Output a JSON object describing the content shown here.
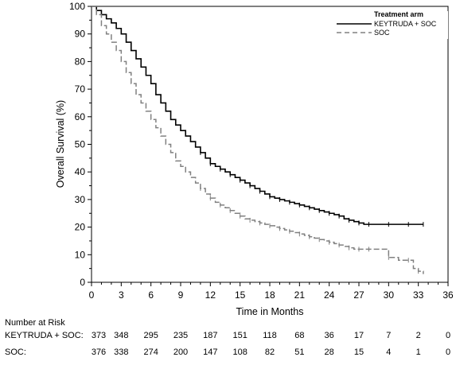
{
  "chart_data": {
    "type": "line",
    "subtype": "kaplan-meier",
    "xlabel": "Time in Months",
    "ylabel": "Overall Survival (%)",
    "xlim": [
      0,
      36
    ],
    "ylim": [
      0,
      100
    ],
    "xticks": [
      0,
      3,
      6,
      9,
      12,
      15,
      18,
      21,
      24,
      27,
      30,
      33,
      36
    ],
    "yticks": [
      0,
      10,
      20,
      30,
      40,
      50,
      60,
      70,
      80,
      90,
      100
    ],
    "grid": false,
    "legend": {
      "title": "Treatment arm",
      "position": "top-right"
    },
    "series": [
      {
        "name": "KEYTRUDA + SOC",
        "color": "#000000",
        "line_style": "solid",
        "x": [
          0,
          0.5,
          1,
          1.5,
          2,
          2.5,
          3,
          3.5,
          4,
          4.5,
          5,
          5.5,
          6,
          6.5,
          7,
          7.5,
          8,
          8.5,
          9,
          9.5,
          10,
          10.5,
          11,
          11.5,
          12,
          12.5,
          13,
          13.5,
          14,
          14.5,
          15,
          15.5,
          16,
          16.5,
          17,
          17.5,
          18,
          18.5,
          19,
          19.5,
          20,
          20.5,
          21,
          21.5,
          22,
          22.5,
          23,
          23.5,
          24,
          24.5,
          25,
          25.5,
          26,
          26.5,
          27,
          27.5,
          28,
          29,
          30,
          31,
          32,
          33,
          33.5
        ],
        "y": [
          100,
          98.5,
          97,
          95.5,
          94,
          92,
          90,
          87,
          84,
          81,
          78,
          75,
          72,
          68,
          65,
          62,
          59,
          57,
          55,
          53,
          51,
          49,
          47,
          45,
          43,
          42,
          41,
          40,
          39,
          38,
          37,
          36,
          35,
          34,
          33,
          32,
          31,
          30.5,
          30,
          29.5,
          29,
          28.5,
          28,
          27.5,
          27,
          26.5,
          26,
          25.5,
          25,
          24.5,
          24,
          23,
          22.5,
          22,
          21.5,
          21,
          21,
          21,
          21,
          21,
          21,
          21,
          21
        ]
      },
      {
        "name": "SOC",
        "color": "#808080",
        "line_style": "dashed",
        "x": [
          0,
          0.5,
          1,
          1.5,
          2,
          2.5,
          3,
          3.5,
          4,
          4.5,
          5,
          5.5,
          6,
          6.5,
          7,
          7.5,
          8,
          8.5,
          9,
          9.5,
          10,
          10.5,
          11,
          11.5,
          12,
          12.5,
          13,
          13.5,
          14,
          14.5,
          15,
          15.5,
          16,
          16.5,
          17,
          17.5,
          18,
          18.5,
          19,
          19.5,
          20,
          20.5,
          21,
          21.5,
          22,
          22.5,
          23,
          23.5,
          24,
          24.5,
          25,
          25.5,
          26,
          26.5,
          27,
          27.5,
          28,
          29,
          30,
          31,
          32,
          32.5,
          33,
          33.5
        ],
        "y": [
          100,
          97,
          93,
          90,
          87,
          84,
          80,
          76,
          72,
          68,
          65,
          62,
          59,
          56,
          53,
          50,
          47,
          44,
          42,
          40,
          38,
          36,
          34,
          32,
          30.5,
          29,
          28,
          27,
          26,
          25,
          24,
          23,
          22.5,
          22,
          21.5,
          21,
          20.5,
          20,
          19.5,
          19,
          18.5,
          18,
          17.5,
          17,
          16.5,
          16,
          15.5,
          15,
          14.5,
          14,
          13.5,
          13,
          12.5,
          12,
          12,
          12,
          12,
          12,
          9,
          8,
          8,
          5,
          4,
          3
        ]
      }
    ],
    "risk_table": {
      "title": "Number at Risk",
      "times": [
        0,
        3,
        6,
        9,
        12,
        15,
        18,
        21,
        24,
        27,
        30,
        33,
        36
      ],
      "rows": [
        {
          "label": "KEYTRUDA + SOC:",
          "values": [
            "373",
            "348",
            "295",
            "235",
            "187",
            "151",
            "118",
            "68",
            "36",
            "17",
            "7",
            "2",
            "0"
          ]
        },
        {
          "label": "SOC:",
          "values": [
            "376",
            "338",
            "274",
            "200",
            "147",
            "108",
            "82",
            "51",
            "28",
            "15",
            "4",
            "1",
            "0"
          ]
        }
      ]
    }
  }
}
